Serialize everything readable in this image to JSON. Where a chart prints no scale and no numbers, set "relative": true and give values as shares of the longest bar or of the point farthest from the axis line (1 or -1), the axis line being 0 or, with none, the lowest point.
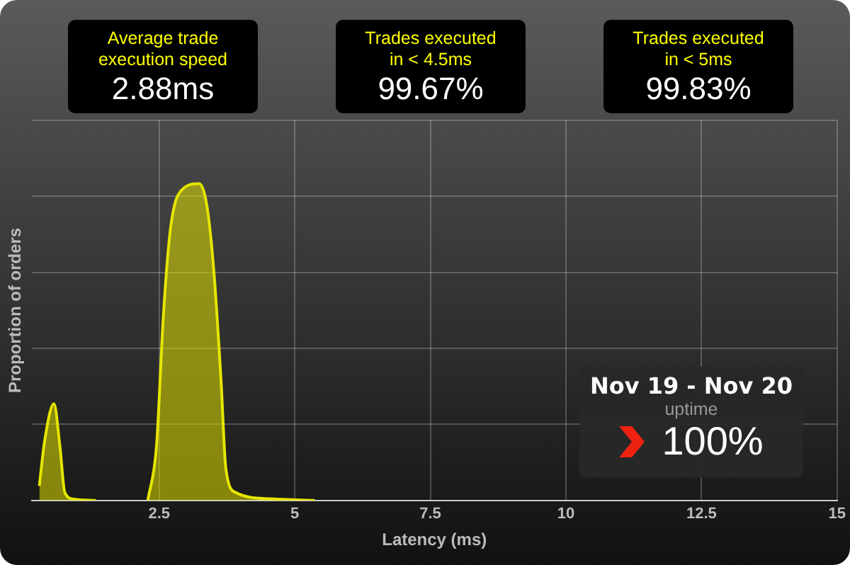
{
  "chart_data": {
    "type": "area",
    "relative": true,
    "xlabel": "Latency (ms)",
    "ylabel": "Proportion of orders",
    "xlim": [
      0.15,
      15
    ],
    "xticks": [
      2.5,
      5,
      7.5,
      10,
      12.5,
      15
    ],
    "grid": true,
    "x": [
      0.29,
      0.39,
      0.56,
      0.67,
      0.76,
      0.93,
      1.33,
      1.8,
      2.29,
      2.45,
      2.58,
      2.71,
      2.89,
      3.24,
      3.38,
      3.51,
      3.64,
      3.73,
      3.91,
      4.57,
      5.37
    ],
    "series": [
      {
        "color": "#e5e500",
        "values": [
          0.046,
          0.19,
          0.305,
          0.17,
          0.025,
          0.004,
          0,
          null,
          0,
          0.17,
          0.59,
          0.86,
          0.975,
          1,
          0.93,
          0.72,
          0.38,
          0.1,
          0.025,
          0.005,
          0
        ]
      }
    ],
    "annotations": [
      "Average trade\nexecution speed",
      "2.88ms",
      "Trades executed\nin < 4.5ms",
      "99.67%",
      "Trades executed\nin < 5ms",
      "99.83%",
      "Nov 19 - Nov 20",
      "uptime",
      "100%"
    ]
  }
}
